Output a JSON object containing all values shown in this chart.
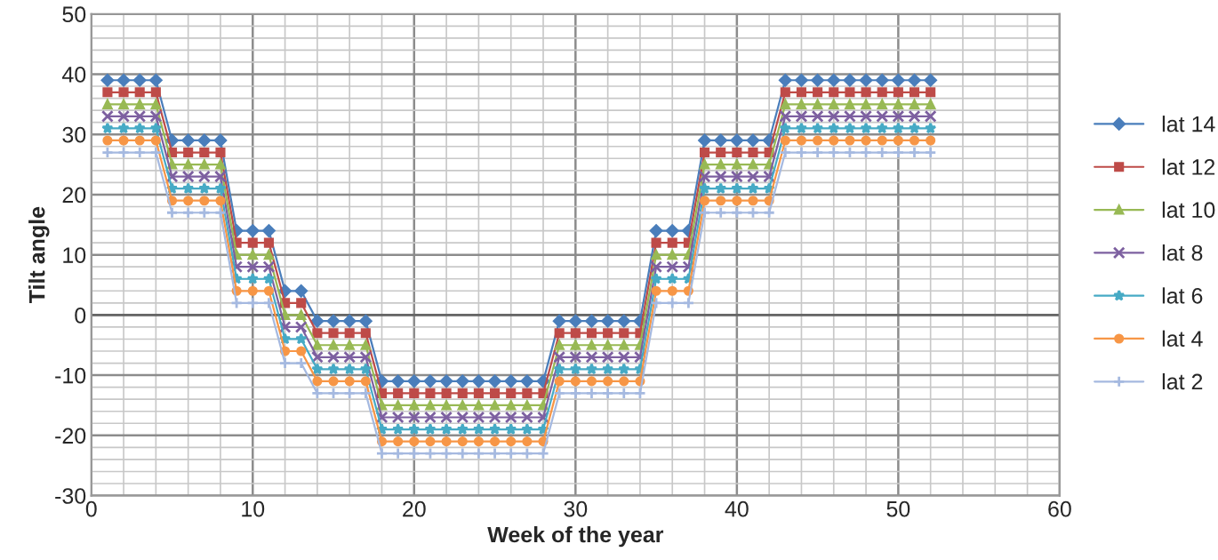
{
  "chart_data": {
    "type": "line",
    "xlabel": "Week of the year",
    "ylabel": "Tilt angle",
    "x": [
      1,
      2,
      3,
      4,
      5,
      6,
      7,
      8,
      9,
      10,
      11,
      12,
      13,
      14,
      15,
      16,
      17,
      18,
      19,
      20,
      21,
      22,
      23,
      24,
      25,
      26,
      27,
      28,
      29,
      30,
      31,
      32,
      33,
      34,
      35,
      36,
      37,
      38,
      39,
      40,
      41,
      42,
      43,
      44,
      45,
      46,
      47,
      48,
      49,
      50,
      51,
      52
    ],
    "series": [
      {
        "name": "lat 14",
        "color": "#4a7ebb",
        "marker": "diamond",
        "values": [
          39,
          39,
          39,
          39,
          29,
          29,
          29,
          29,
          14,
          14,
          14,
          4,
          4,
          -1,
          -1,
          -1,
          -1,
          -11,
          -11,
          -11,
          -11,
          -11,
          -11,
          -11,
          -11,
          -11,
          -11,
          -11,
          -1,
          -1,
          -1,
          -1,
          -1,
          -1,
          14,
          14,
          14,
          29,
          29,
          29,
          29,
          29,
          39,
          39,
          39,
          39,
          39,
          39,
          39,
          39,
          39,
          39
        ]
      },
      {
        "name": "lat 12",
        "color": "#be4b48",
        "marker": "square",
        "values": [
          37,
          37,
          37,
          37,
          27,
          27,
          27,
          27,
          12,
          12,
          12,
          2,
          2,
          -3,
          -3,
          -3,
          -3,
          -13,
          -13,
          -13,
          -13,
          -13,
          -13,
          -13,
          -13,
          -13,
          -13,
          -13,
          -3,
          -3,
          -3,
          -3,
          -3,
          -3,
          12,
          12,
          12,
          27,
          27,
          27,
          27,
          27,
          37,
          37,
          37,
          37,
          37,
          37,
          37,
          37,
          37,
          37
        ]
      },
      {
        "name": "lat 10",
        "color": "#98b954",
        "marker": "triangle",
        "values": [
          35,
          35,
          35,
          35,
          25,
          25,
          25,
          25,
          10,
          10,
          10,
          0,
          0,
          -5,
          -5,
          -5,
          -5,
          -15,
          -15,
          -15,
          -15,
          -15,
          -15,
          -15,
          -15,
          -15,
          -15,
          -15,
          -5,
          -5,
          -5,
          -5,
          -5,
          -5,
          10,
          10,
          10,
          25,
          25,
          25,
          25,
          25,
          35,
          35,
          35,
          35,
          35,
          35,
          35,
          35,
          35,
          35
        ]
      },
      {
        "name": "lat 8",
        "color": "#7d60a0",
        "marker": "x",
        "values": [
          33,
          33,
          33,
          33,
          23,
          23,
          23,
          23,
          8,
          8,
          8,
          -2,
          -2,
          -7,
          -7,
          -7,
          -7,
          -17,
          -17,
          -17,
          -17,
          -17,
          -17,
          -17,
          -17,
          -17,
          -17,
          -17,
          -7,
          -7,
          -7,
          -7,
          -7,
          -7,
          8,
          8,
          8,
          23,
          23,
          23,
          23,
          23,
          33,
          33,
          33,
          33,
          33,
          33,
          33,
          33,
          33,
          33
        ]
      },
      {
        "name": "lat 6",
        "color": "#46aac5",
        "marker": "star",
        "values": [
          31,
          31,
          31,
          31,
          21,
          21,
          21,
          21,
          6,
          6,
          6,
          -4,
          -4,
          -9,
          -9,
          -9,
          -9,
          -19,
          -19,
          -19,
          -19,
          -19,
          -19,
          -19,
          -19,
          -19,
          -19,
          -19,
          -9,
          -9,
          -9,
          -9,
          -9,
          -9,
          6,
          6,
          6,
          21,
          21,
          21,
          21,
          21,
          31,
          31,
          31,
          31,
          31,
          31,
          31,
          31,
          31,
          31
        ]
      },
      {
        "name": "lat 4",
        "color": "#f79646",
        "marker": "circle",
        "values": [
          29,
          29,
          29,
          29,
          19,
          19,
          19,
          19,
          4,
          4,
          4,
          -6,
          -6,
          -11,
          -11,
          -11,
          -11,
          -21,
          -21,
          -21,
          -21,
          -21,
          -21,
          -21,
          -21,
          -21,
          -21,
          -21,
          -11,
          -11,
          -11,
          -11,
          -11,
          -11,
          4,
          4,
          4,
          19,
          19,
          19,
          19,
          19,
          29,
          29,
          29,
          29,
          29,
          29,
          29,
          29,
          29,
          29
        ]
      },
      {
        "name": "lat 2",
        "color": "#a5b9e0",
        "marker": "cross",
        "values": [
          27,
          27,
          27,
          27,
          17,
          17,
          17,
          17,
          2,
          2,
          2,
          -8,
          -8,
          -13,
          -13,
          -13,
          -13,
          -23,
          -23,
          -23,
          -23,
          -23,
          -23,
          -23,
          -23,
          -23,
          -23,
          -23,
          -13,
          -13,
          -13,
          -13,
          -13,
          -13,
          2,
          2,
          2,
          17,
          17,
          17,
          17,
          17,
          27,
          27,
          27,
          27,
          27,
          27,
          27,
          27,
          27,
          27
        ]
      }
    ],
    "xlim": [
      0,
      60
    ],
    "xticks": [
      0,
      10,
      20,
      30,
      40,
      50,
      60
    ],
    "ylim": [
      -30,
      50
    ],
    "yticks": [
      -30,
      -20,
      -10,
      0,
      10,
      20,
      30,
      40,
      50
    ],
    "grid": true,
    "legend": "right"
  }
}
